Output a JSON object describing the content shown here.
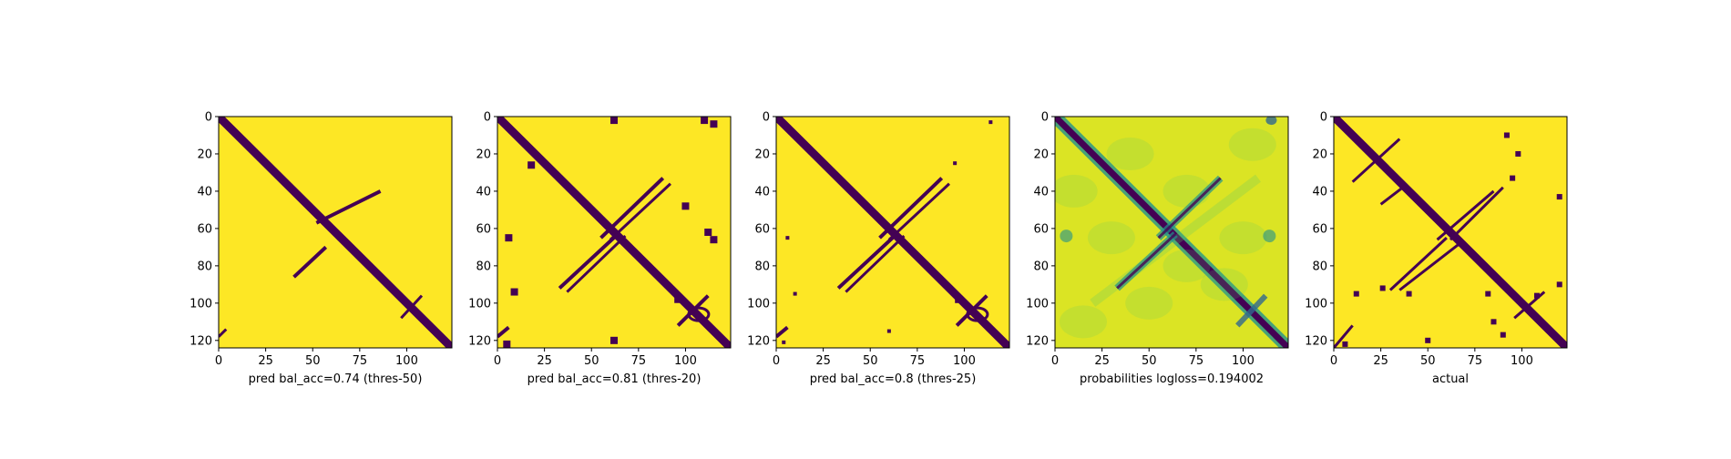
{
  "figure": {
    "background": "#ffffff"
  },
  "colors": {
    "low": "#440154",
    "high": "#fde725",
    "mid_dark": "#31688e",
    "mid": "#21918c",
    "mid_light": "#5ec962"
  },
  "chart_data": [
    {
      "type": "heatmap",
      "title": "",
      "xlabel": "pred bal_acc=0.74 (thres-50)",
      "ylabel": "",
      "size": 124,
      "xlim": [
        0,
        124
      ],
      "ylim": [
        124,
        0
      ],
      "xticks": [
        0,
        25,
        50,
        75,
        100
      ],
      "yticks": [
        0,
        20,
        40,
        60,
        80,
        100,
        120
      ],
      "colormap": "viridis",
      "binary": true,
      "grid": false
    },
    {
      "type": "heatmap",
      "title": "",
      "xlabel": "pred bal_acc=0.81 (thres-20)",
      "ylabel": "",
      "size": 124,
      "xlim": [
        0,
        124
      ],
      "ylim": [
        124,
        0
      ],
      "xticks": [
        0,
        25,
        50,
        75,
        100
      ],
      "yticks": [
        0,
        20,
        40,
        60,
        80,
        100,
        120
      ],
      "colormap": "viridis",
      "binary": true,
      "grid": false
    },
    {
      "type": "heatmap",
      "title": "",
      "xlabel": "pred bal_acc=0.8 (thres-25)",
      "ylabel": "",
      "size": 124,
      "xlim": [
        0,
        124
      ],
      "ylim": [
        124,
        0
      ],
      "xticks": [
        0,
        25,
        50,
        75,
        100
      ],
      "yticks": [
        0,
        20,
        40,
        60,
        80,
        100,
        120
      ],
      "colormap": "viridis",
      "binary": true,
      "grid": false
    },
    {
      "type": "heatmap",
      "title": "",
      "xlabel": "probabilities logloss=0.194002",
      "ylabel": "",
      "size": 124,
      "xlim": [
        0,
        124
      ],
      "ylim": [
        124,
        0
      ],
      "xticks": [
        0,
        25,
        50,
        75,
        100
      ],
      "yticks": [
        0,
        20,
        40,
        60,
        80,
        100,
        120
      ],
      "colormap": "viridis",
      "binary": false,
      "grid": false
    },
    {
      "type": "heatmap",
      "title": "",
      "xlabel": "actual",
      "ylabel": "",
      "size": 124,
      "xlim": [
        0,
        124
      ],
      "ylim": [
        124,
        0
      ],
      "xticks": [
        0,
        25,
        50,
        75,
        100
      ],
      "yticks": [
        0,
        20,
        40,
        60,
        80,
        100,
        120
      ],
      "colormap": "viridis",
      "binary": true,
      "grid": false
    }
  ]
}
